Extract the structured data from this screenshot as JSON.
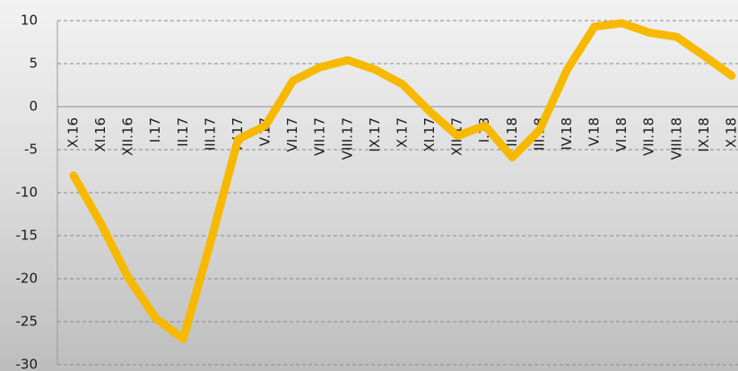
{
  "chart_data": {
    "type": "line",
    "categories": [
      "X.16",
      "XI.16",
      "XII.16",
      "I.17",
      "II.17",
      "III.17",
      "IV.17",
      "V.17",
      "VI.17",
      "VII.17",
      "VIII.17",
      "IX.17",
      "X.17",
      "XI.17",
      "XII.17",
      "I.18",
      "II.18",
      "III.18",
      "IV.18",
      "V.18",
      "VI.18",
      "VII.18",
      "VIII.18",
      "IX.18",
      "X.18"
    ],
    "values": [
      -8,
      -13.6,
      -19.9,
      -24.6,
      -27,
      -15.7,
      -3.8,
      -2.2,
      3,
      4.6,
      5.4,
      4.3,
      2.6,
      -0.6,
      -3.4,
      -2.2,
      -5.9,
      -2.7,
      4.3,
      9.3,
      9.7,
      8.6,
      8.1,
      5.9,
      3.6
    ],
    "color": "#f6b900",
    "ylim": [
      -30,
      10
    ],
    "yticks": [
      -30,
      -25,
      -20,
      -15,
      -10,
      -5,
      0,
      5,
      10
    ],
    "grid": true
  }
}
